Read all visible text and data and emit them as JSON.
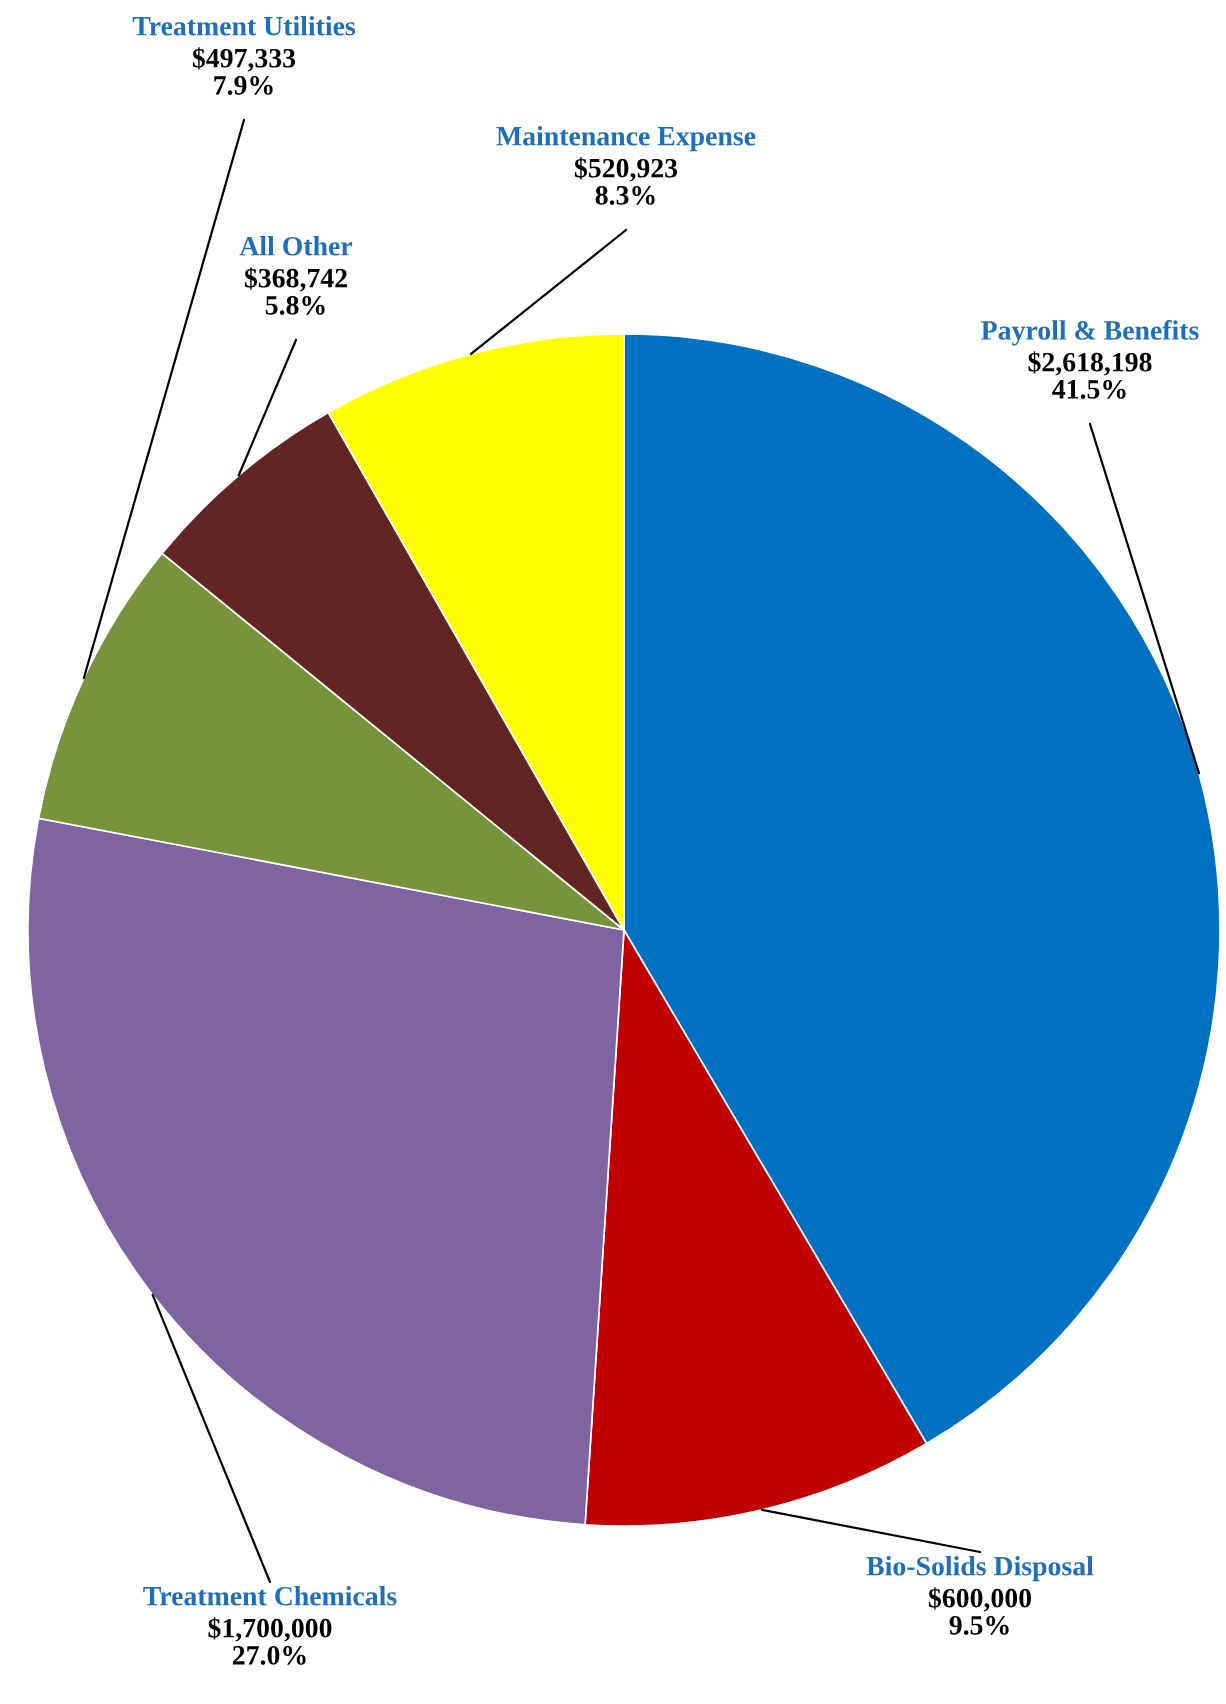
{
  "chart_data": {
    "type": "pie",
    "categories": [
      "Payroll & Benefits",
      "Bio-Solids Disposal",
      "Treatment Chemicals",
      "Treatment Utilities",
      "All Other",
      "Maintenance Expense"
    ],
    "values": [
      2618198,
      600000,
      1700000,
      497333,
      368742,
      520923
    ],
    "value_labels": [
      "$2,618,198\n41.5%",
      "$600,000\n9.5%",
      "$1,700,000\n27.0%",
      "$497,333\n7.9%",
      "$368,742\n5.8%",
      "$520,923\n8.3%"
    ],
    "colors": [
      "#0070c0",
      "#c00000",
      "#8064a2",
      "#77933c",
      "#632523",
      "#ffff00"
    ],
    "legend": false
  }
}
